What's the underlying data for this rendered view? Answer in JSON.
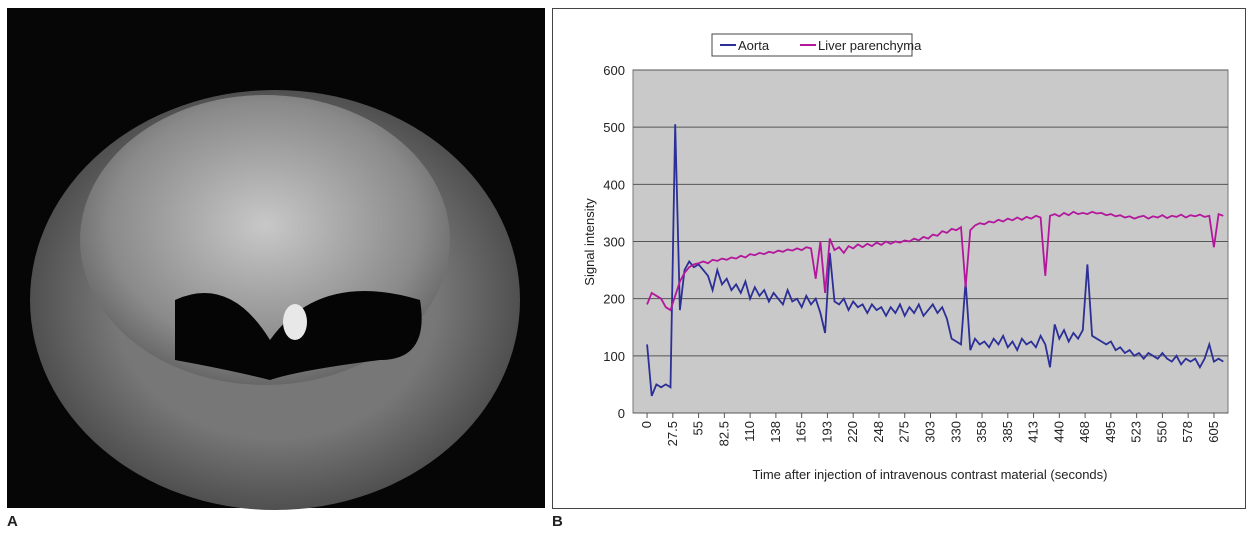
{
  "panels": [
    {
      "label": "A"
    },
    {
      "label": "B"
    }
  ],
  "chart_data": {
    "type": "line",
    "xlabel": "Time after injection of intravenous contrast material (seconds)",
    "ylabel": "Signal intensity",
    "legend": "top",
    "grid": true,
    "xlim": [
      -15,
      620
    ],
    "ylim": [
      0,
      600
    ],
    "yticks": [
      0,
      100,
      200,
      300,
      400,
      500,
      600
    ],
    "xticks": [
      0,
      27.5,
      55,
      82.5,
      110,
      {
        "value": 137.5,
        "label": "138"
      },
      165,
      {
        "value": 192.5,
        "label": "193"
      },
      220,
      {
        "value": 247.5,
        "label": "248"
      },
      275,
      {
        "value": 302.5,
        "label": "303"
      },
      330,
      {
        "value": 357.5,
        "label": "358"
      },
      385,
      {
        "value": 412.5,
        "label": "413"
      },
      440,
      {
        "value": 467.5,
        "label": "468"
      },
      495,
      {
        "value": 522.5,
        "label": "523"
      },
      550,
      {
        "value": 577.5,
        "label": "578"
      },
      605
    ],
    "x": [
      0,
      5,
      10,
      15,
      20,
      25,
      30,
      35,
      40,
      45,
      50,
      55,
      60,
      65,
      70,
      75,
      80,
      85,
      90,
      95,
      100,
      105,
      110,
      115,
      120,
      125,
      130,
      135,
      140,
      145,
      150,
      155,
      160,
      165,
      170,
      175,
      180,
      185,
      190,
      195,
      200,
      205,
      210,
      215,
      220,
      225,
      230,
      235,
      240,
      245,
      250,
      255,
      260,
      265,
      270,
      275,
      280,
      285,
      290,
      295,
      300,
      305,
      310,
      315,
      320,
      325,
      330,
      335,
      340,
      345,
      350,
      355,
      360,
      365,
      370,
      375,
      380,
      385,
      390,
      395,
      400,
      405,
      410,
      415,
      420,
      425,
      430,
      435,
      440,
      445,
      450,
      455,
      460,
      465,
      470,
      475,
      480,
      485,
      490,
      495,
      500,
      505,
      510,
      515,
      520,
      525,
      530,
      535,
      540,
      545,
      550,
      555,
      560,
      565,
      570,
      575,
      580,
      585,
      590,
      595,
      600,
      605,
      610,
      615
    ],
    "series": [
      {
        "name": "Aorta",
        "color": "#2b2f96",
        "values": [
          120,
          30,
          50,
          45,
          50,
          45,
          505,
          180,
          250,
          265,
          255,
          260,
          250,
          240,
          215,
          250,
          225,
          235,
          215,
          225,
          210,
          230,
          200,
          220,
          205,
          215,
          195,
          210,
          200,
          190,
          215,
          195,
          200,
          185,
          205,
          190,
          200,
          175,
          140,
          280,
          195,
          190,
          200,
          180,
          195,
          185,
          190,
          175,
          190,
          180,
          185,
          170,
          185,
          175,
          190,
          170,
          185,
          175,
          190,
          170,
          180,
          190,
          175,
          185,
          165,
          130,
          125,
          120,
          230,
          110,
          130,
          120,
          125,
          115,
          130,
          120,
          135,
          115,
          125,
          110,
          130,
          120,
          125,
          115,
          135,
          120,
          80,
          155,
          130,
          145,
          125,
          140,
          130,
          145,
          260,
          135,
          130,
          125,
          120,
          125,
          110,
          115,
          105,
          110,
          100,
          105,
          95,
          105,
          100,
          95,
          105,
          95,
          90,
          100,
          85,
          95,
          90,
          95,
          80,
          95,
          120,
          90,
          95,
          90
        ]
      },
      {
        "name": "Liver parenchyma",
        "color": "#b3179c",
        "values": [
          190,
          210,
          205,
          200,
          185,
          180,
          205,
          230,
          245,
          255,
          260,
          262,
          265,
          262,
          268,
          266,
          270,
          268,
          272,
          270,
          275,
          272,
          278,
          276,
          280,
          278,
          282,
          280,
          284,
          282,
          286,
          284,
          288,
          285,
          290,
          288,
          235,
          300,
          210,
          305,
          285,
          290,
          280,
          292,
          288,
          295,
          290,
          296,
          292,
          298,
          294,
          300,
          296,
          300,
          298,
          302,
          300,
          305,
          302,
          308,
          305,
          312,
          310,
          318,
          315,
          322,
          320,
          325,
          220,
          320,
          328,
          332,
          330,
          335,
          333,
          338,
          335,
          340,
          337,
          342,
          338,
          343,
          340,
          345,
          342,
          240,
          345,
          348,
          344,
          350,
          346,
          352,
          348,
          350,
          348,
          352,
          349,
          350,
          346,
          348,
          344,
          346,
          342,
          344,
          340,
          343,
          345,
          340,
          344,
          342,
          346,
          341,
          345,
          343,
          347,
          342,
          346,
          344,
          347,
          343,
          345,
          290,
          348,
          345
        ]
      }
    ]
  }
}
